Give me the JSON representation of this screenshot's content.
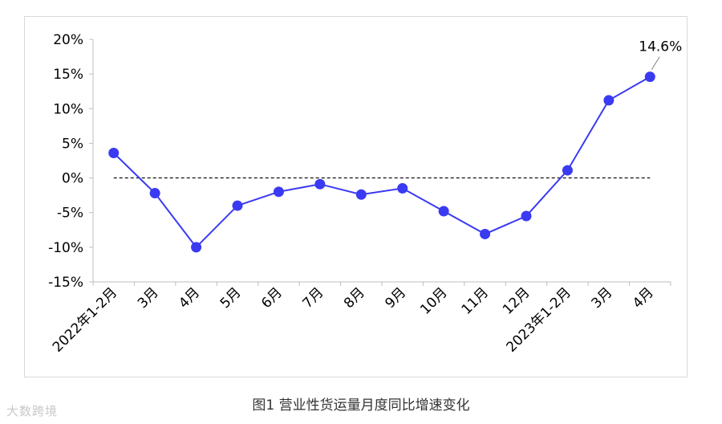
{
  "caption": "图1 营业性货运量月度同比增速变化",
  "watermark": "大数跨境",
  "chart_data": {
    "type": "line",
    "categories": [
      "2022年1-2月",
      "3月",
      "4月",
      "5月",
      "6月",
      "7月",
      "8月",
      "9月",
      "10月",
      "11月",
      "12月",
      "2023年1-2月",
      "3月",
      "4月"
    ],
    "series": [
      {
        "values": [
          3.6,
          -2.2,
          -10.0,
          -4.0,
          -2.0,
          -0.9,
          -2.4,
          -1.5,
          -4.8,
          -8.1,
          -5.5,
          1.1,
          11.2,
          14.6
        ],
        "color": "#3a3af2"
      }
    ],
    "ylim": [
      -15,
      20
    ],
    "yticks": [
      "20%",
      "15%",
      "10%",
      "5%",
      "0%",
      "-5%",
      "-10%",
      "-15%"
    ],
    "ytick_values": [
      20,
      15,
      10,
      5,
      0,
      -5,
      -10,
      -15
    ],
    "reference_line": {
      "value": 0,
      "style": "dashed"
    },
    "annotations": [
      {
        "index": 13,
        "text": "14.6%"
      }
    ],
    "grid": false,
    "xlabel": "",
    "ylabel": ""
  }
}
